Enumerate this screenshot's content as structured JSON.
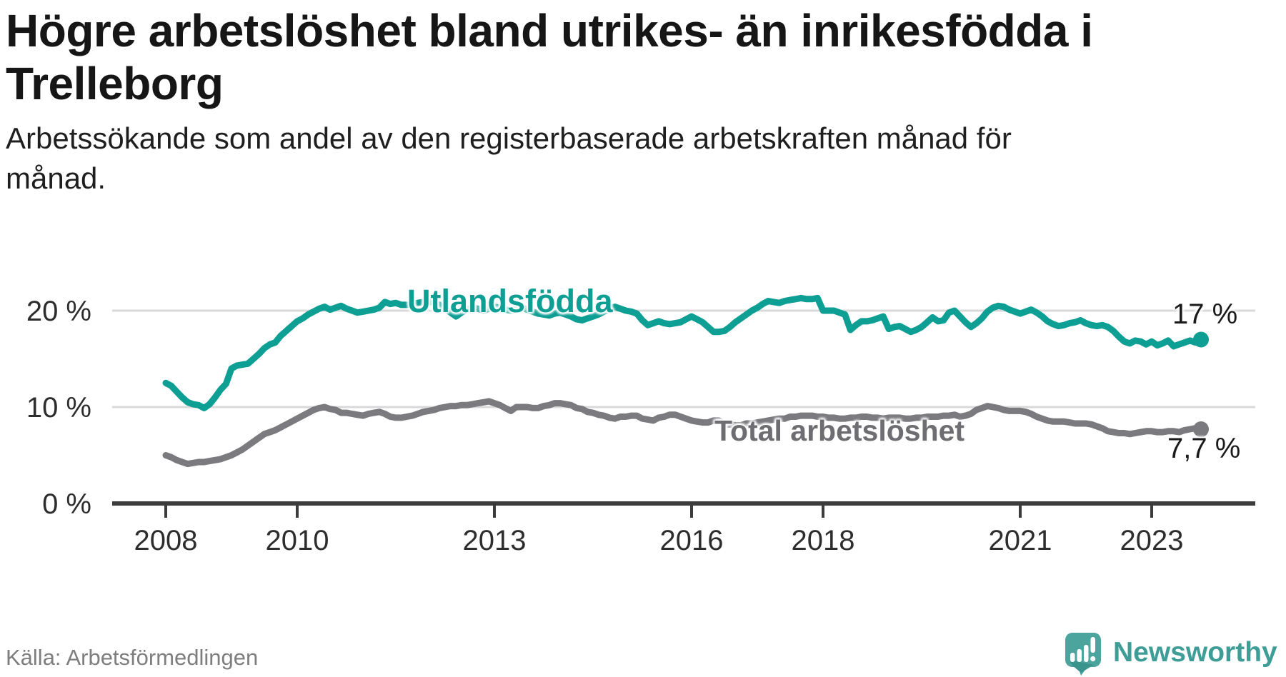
{
  "header": {
    "title": "Högre arbetslöshet bland utrikes- än inrikesfödda i Trelleborg",
    "subtitle": "Arbetssökande som andel av den registerbaserade arbetskraften månad för månad."
  },
  "chart_data": {
    "type": "line",
    "title": "Högre arbetslöshet bland utrikes- än inrikesfödda i Trelleborg",
    "xlabel": "",
    "ylabel": "Arbetssökande som andel av den registerbaserade arbetskraften",
    "start_year": 2008,
    "points_per_year": 12,
    "end_period": "oktober 2023",
    "xlim": [
      2007.2,
      2024.6
    ],
    "ylim": [
      0,
      24
    ],
    "grid": "horizontal-light",
    "legend_position": "inline-labels",
    "x_ticks": [
      2008,
      2010,
      2013,
      2016,
      2018,
      2021,
      2023
    ],
    "y_ticks": [
      {
        "value": 0,
        "label": "0 %"
      },
      {
        "value": 10,
        "label": "10 %"
      },
      {
        "value": 20,
        "label": "20 %"
      }
    ],
    "series": [
      {
        "name": "Utlandsfödda",
        "color": "#0d9e94",
        "end_label": "17 %",
        "end_value": 17.0,
        "values": [
          12.5,
          12.2,
          11.6,
          11.0,
          10.5,
          10.3,
          10.2,
          9.9,
          10.3,
          11.0,
          11.8,
          12.4,
          14.0,
          14.3,
          14.4,
          14.5,
          15.0,
          15.5,
          16.1,
          16.5,
          16.7,
          17.4,
          17.9,
          18.4,
          18.9,
          19.2,
          19.6,
          19.9,
          20.2,
          20.4,
          20.1,
          20.3,
          20.5,
          20.2,
          20.0,
          19.8,
          19.9,
          20.0,
          20.1,
          20.3,
          20.9,
          20.7,
          20.8,
          20.6,
          20.6,
          20.7,
          20.8,
          20.9,
          21.0,
          20.8,
          20.6,
          20.2,
          19.8,
          19.4,
          19.8,
          20.1,
          20.3,
          20.2,
          20.0,
          20.2,
          20.4,
          20.3,
          20.1,
          20.0,
          20.2,
          20.3,
          20.1,
          19.9,
          19.7,
          19.6,
          19.5,
          19.7,
          19.8,
          19.6,
          19.4,
          19.1,
          19.0,
          19.2,
          19.4,
          19.6,
          19.9,
          20.2,
          20.4,
          20.2,
          20.0,
          19.9,
          19.7,
          19.0,
          18.5,
          18.7,
          18.9,
          18.7,
          18.6,
          18.7,
          18.8,
          19.1,
          19.4,
          19.1,
          18.8,
          18.3,
          17.8,
          17.8,
          17.9,
          18.3,
          18.8,
          19.2,
          19.6,
          20.0,
          20.3,
          20.7,
          21.0,
          20.9,
          20.8,
          21.0,
          21.1,
          21.2,
          21.3,
          21.2,
          21.2,
          21.3,
          20.0,
          20.0,
          20.0,
          19.8,
          19.6,
          18.0,
          18.5,
          18.9,
          18.9,
          19.0,
          19.2,
          19.4,
          18.1,
          18.3,
          18.4,
          18.1,
          17.8,
          18.0,
          18.3,
          18.8,
          19.3,
          18.9,
          19.0,
          19.8,
          20.0,
          19.4,
          18.8,
          18.3,
          18.7,
          19.2,
          19.9,
          20.3,
          20.5,
          20.4,
          20.1,
          19.9,
          19.7,
          19.9,
          20.1,
          19.8,
          19.4,
          18.9,
          18.6,
          18.4,
          18.5,
          18.7,
          18.8,
          19.0,
          18.7,
          18.5,
          18.4,
          18.5,
          18.3,
          17.9,
          17.3,
          16.8,
          16.6,
          16.9,
          16.8,
          16.5,
          16.8,
          16.4,
          16.6,
          16.9,
          16.3,
          16.5,
          16.7,
          16.9,
          16.7,
          17.0
        ]
      },
      {
        "name": "Total arbetslöshet",
        "color": "#7a7a7f",
        "end_label": "7,7 %",
        "end_value": 7.7,
        "values": [
          5.0,
          4.8,
          4.5,
          4.3,
          4.1,
          4.2,
          4.3,
          4.3,
          4.4,
          4.5,
          4.6,
          4.8,
          5.0,
          5.3,
          5.6,
          6.0,
          6.4,
          6.8,
          7.2,
          7.4,
          7.6,
          7.9,
          8.2,
          8.5,
          8.8,
          9.1,
          9.4,
          9.7,
          9.9,
          10.0,
          9.8,
          9.7,
          9.4,
          9.4,
          9.3,
          9.2,
          9.1,
          9.3,
          9.4,
          9.5,
          9.3,
          9.0,
          8.9,
          8.9,
          9.0,
          9.1,
          9.3,
          9.5,
          9.6,
          9.7,
          9.9,
          10.0,
          10.1,
          10.1,
          10.2,
          10.2,
          10.3,
          10.4,
          10.5,
          10.6,
          10.4,
          10.2,
          9.9,
          9.6,
          10.0,
          10.0,
          10.0,
          9.9,
          9.9,
          10.1,
          10.2,
          10.4,
          10.4,
          10.3,
          10.2,
          9.9,
          9.8,
          9.5,
          9.4,
          9.2,
          9.1,
          8.9,
          8.8,
          9.0,
          9.0,
          9.1,
          9.1,
          8.8,
          8.7,
          8.6,
          8.9,
          9.0,
          9.2,
          9.2,
          9.0,
          8.8,
          8.6,
          8.5,
          8.4,
          8.4,
          8.6,
          8.6,
          8.2,
          8.2,
          8.1,
          8.1,
          8.3,
          8.3,
          8.4,
          8.5,
          8.6,
          8.7,
          8.8,
          8.8,
          9.0,
          9.0,
          9.1,
          9.1,
          9.1,
          9.0,
          9.0,
          8.9,
          8.9,
          8.8,
          8.8,
          8.9,
          8.9,
          9.0,
          9.0,
          8.9,
          8.9,
          8.8,
          8.9,
          8.9,
          8.9,
          8.8,
          8.8,
          8.9,
          8.9,
          9.0,
          9.0,
          9.0,
          9.1,
          9.1,
          9.2,
          9.0,
          9.1,
          9.3,
          9.7,
          9.9,
          10.1,
          10.0,
          9.9,
          9.7,
          9.6,
          9.6,
          9.6,
          9.5,
          9.3,
          9.0,
          8.8,
          8.6,
          8.5,
          8.5,
          8.5,
          8.4,
          8.3,
          8.3,
          8.3,
          8.2,
          8.0,
          7.8,
          7.5,
          7.4,
          7.3,
          7.3,
          7.2,
          7.3,
          7.4,
          7.5,
          7.5,
          7.4,
          7.4,
          7.5,
          7.5,
          7.4,
          7.6,
          7.7,
          7.8,
          7.7
        ]
      }
    ],
    "style": {
      "grid_color": "#d9d9d9",
      "axis_color": "#3c3c3c",
      "tick_text_color": "#2d2d2d",
      "line_width": 9
    }
  },
  "footer": {
    "source": "Källa: Arbetsförmedlingen",
    "brand": "Newsworthy",
    "brand_color": "#3e9d96",
    "logo_color": "#4ba49d"
  }
}
